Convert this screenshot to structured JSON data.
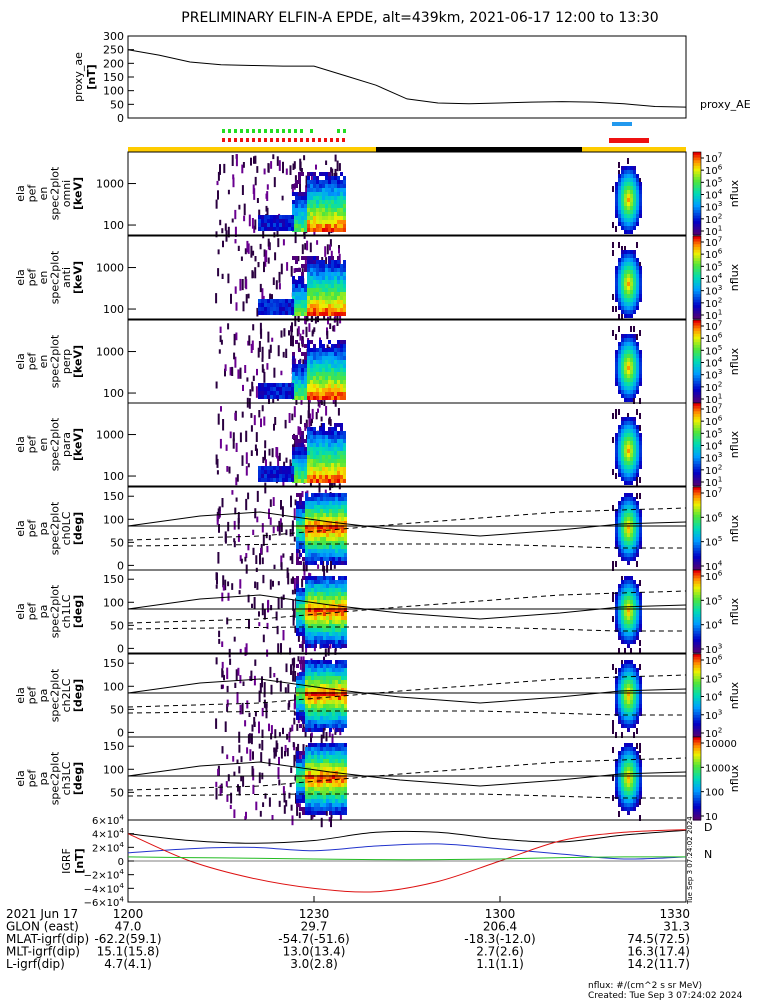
{
  "title": "PRELIMINARY ELFIN-A EPDE, alt=439km, 2021-06-17 12:00 to 13:30",
  "colors": {
    "frame": "#000000",
    "ae_line": "#000000",
    "state_green": "#22dd22",
    "state_red": "#ee1111",
    "state_blue": "#2299ee",
    "sunlight_bar": "#ffcc00",
    "shadow_bar": "#000000",
    "igrf_x": "#000000",
    "igrf_y": "#2233cc",
    "igrf_z": "#dd1111",
    "igrf_zero": "#22bb22"
  },
  "ae_panel": {
    "ylabel": [
      "proxy_ae",
      "[nT]"
    ],
    "legend": "proxy_AE",
    "yticks": [
      "300",
      "250",
      "200",
      "150",
      "100",
      "50",
      "0"
    ]
  },
  "energy_panels": [
    {
      "ylabel": [
        "ela",
        "pef",
        "en",
        "spec2plot",
        "omni",
        "[keV]"
      ],
      "yticks": [
        "1000",
        "100"
      ]
    },
    {
      "ylabel": [
        "ela",
        "pef",
        "en",
        "spec2plot",
        "anti",
        "[keV]"
      ],
      "yticks": [
        "1000",
        "100"
      ]
    },
    {
      "ylabel": [
        "ela",
        "pef",
        "en",
        "spec2plot",
        "perp",
        "[keV]"
      ],
      "yticks": [
        "1000",
        "100"
      ]
    },
    {
      "ylabel": [
        "ela",
        "pef",
        "en",
        "spec2plot",
        "para",
        "[keV]"
      ],
      "yticks": [
        "1000",
        "100"
      ]
    }
  ],
  "pitch_panels": [
    {
      "ylabel": [
        "ela",
        "pef",
        "pa",
        "spec2plot",
        "ch0LC",
        "[deg]"
      ],
      "yticks": [
        "150",
        "100",
        "50",
        "0"
      ]
    },
    {
      "ylabel": [
        "ela",
        "pef",
        "pa",
        "spec2plot",
        "ch1LC",
        "[deg]"
      ],
      "yticks": [
        "150",
        "100",
        "50",
        "0"
      ]
    },
    {
      "ylabel": [
        "ela",
        "pef",
        "pa",
        "spec2plot",
        "ch2LC",
        "[deg]"
      ],
      "yticks": [
        "150",
        "100",
        "50",
        "0"
      ]
    },
    {
      "ylabel": [
        "ela",
        "pef",
        "pa",
        "spec2plot",
        "ch3LC",
        "[deg]"
      ],
      "yticks": [
        "150",
        "100",
        "50"
      ]
    }
  ],
  "colorbars": [
    {
      "label": "nflux",
      "ticks": [
        "10^7",
        "10^6",
        "10^5",
        "10^4",
        "10^3",
        "10^2",
        "10^1"
      ]
    },
    {
      "label": "nflux",
      "ticks": [
        "10^7",
        "10^6",
        "10^5",
        "10^4",
        "10^3",
        "10^2",
        "10^1"
      ]
    },
    {
      "label": "nflux",
      "ticks": [
        "10^7",
        "10^6",
        "10^5",
        "10^4",
        "10^3",
        "10^2",
        "10^1"
      ]
    },
    {
      "label": "nflux",
      "ticks": [
        "10^7",
        "10^6",
        "10^5",
        "10^4",
        "10^3",
        "10^2",
        "10^1"
      ]
    },
    {
      "label": "nflux",
      "ticks": [
        "10^7",
        "10^6",
        "10^5",
        "10^4"
      ]
    },
    {
      "label": "nflux",
      "ticks": [
        "10^6",
        "10^5",
        "10^4",
        "10^3"
      ]
    },
    {
      "label": "nflux",
      "ticks": [
        "10^6",
        "10^5",
        "10^4",
        "10^3",
        "10^2"
      ]
    },
    {
      "label": "nflux",
      "ticks": [
        "10000",
        "1000",
        "100",
        "10"
      ]
    }
  ],
  "igrf_panel": {
    "ylabel": [
      "IGRF",
      "[nT]"
    ],
    "yticks": [
      "6×10^4",
      "4×10^4",
      "2×10^4",
      "0",
      "−2×10^4",
      "−4×10^4",
      "−6×10^4"
    ],
    "legend": [
      "D",
      "N"
    ],
    "side_text": "Tue Sep  3 07:24:02 2024"
  },
  "xaxis": {
    "rows": [
      {
        "label": "2021 Jun 17",
        "values": [
          "1200",
          "1230",
          "1300",
          "1330"
        ]
      },
      {
        "label": "GLON (east)",
        "values": [
          "47.0",
          "29.7",
          "206.4",
          "31.3"
        ]
      },
      {
        "label": "MLAT-igrf(dip)",
        "values": [
          "-62.2(59.1)",
          "-54.7(-51.6)",
          "-18.3(-12.0)",
          "74.5(72.5)"
        ]
      },
      {
        "label": "MLT-igrf(dip)",
        "values": [
          "15.1(15.8)",
          "13.0(13.4)",
          "2.7(2.6)",
          "16.3(17.4)"
        ]
      },
      {
        "label": "L-igrf(dip)",
        "values": [
          "4.7(4.1)",
          "3.0(2.8)",
          "1.1(1.1)",
          "14.2(11.7)"
        ]
      }
    ]
  },
  "footer": {
    "units": "nflux: #/(cm^2 s sr MeV)",
    "created": "Created: Tue Sep  3 07:24:02 2024"
  },
  "chart_data": {
    "type": "line",
    "title": "PRELIMINARY ELFIN-A EPDE, alt=439km, 2021-06-17 12:00 to 13:30",
    "x_range": [
      "12:00",
      "13:30"
    ],
    "proxy_ae": {
      "ylim": [
        0,
        300
      ],
      "x": [
        "12:00",
        "12:05",
        "12:10",
        "12:15",
        "12:20",
        "12:25",
        "12:30",
        "12:35",
        "12:40",
        "12:45",
        "12:50",
        "12:55",
        "13:00",
        "13:05",
        "13:10",
        "13:15",
        "13:20",
        "13:25",
        "13:30"
      ],
      "values": [
        250,
        230,
        205,
        195,
        192,
        190,
        190,
        155,
        120,
        70,
        55,
        52,
        55,
        58,
        60,
        58,
        52,
        42,
        40
      ]
    },
    "energy_ylim_keV": [
      60,
      5000
    ],
    "pitch_ylim_deg": [
      0,
      180
    ],
    "igrf_ylim_nT": [
      -60000,
      60000
    ],
    "igrf": {
      "x": [
        "12:00",
        "12:10",
        "12:20",
        "12:30",
        "12:40",
        "12:50",
        "13:00",
        "13:10",
        "13:20",
        "13:30"
      ],
      "series": [
        {
          "values": [
            40000,
            30000,
            26000,
            30000,
            42000,
            42000,
            32000,
            28000,
            38000,
            45000
          ]
        },
        {
          "values": [
            12000,
            18000,
            20000,
            15000,
            22000,
            25000,
            18000,
            10000,
            3000,
            6000
          ]
        },
        {
          "values": [
            40000,
            0,
            -25000,
            -40000,
            -45000,
            -30000,
            0,
            30000,
            42000,
            46000
          ]
        },
        {
          "values": [
            6000,
            5000,
            4000,
            3000,
            2000,
            2000,
            3000,
            5000,
            6000,
            6000
          ]
        }
      ]
    }
  }
}
